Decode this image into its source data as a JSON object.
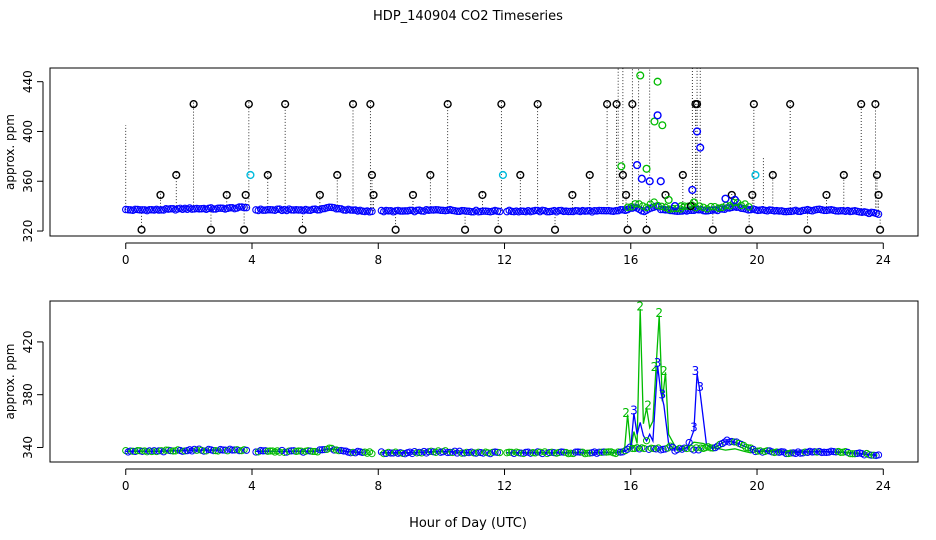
{
  "chart_data": [
    {
      "type": "scatter",
      "title": "HDP_140904  CO2 Timeseries",
      "xlabel": "",
      "ylabel": "approx. ppm",
      "xlim": [
        -2.4,
        25.1
      ],
      "ylim": [
        316,
        451
      ],
      "xticks": [
        0,
        4,
        8,
        12,
        16,
        20,
        24
      ],
      "yticks": [
        320,
        360,
        400,
        440
      ],
      "grid": false,
      "colors": {
        "series1": "#000000",
        "series2": "#00bb00",
        "series3": "#0000ff",
        "series4": "#00bbdd"
      },
      "baseline": {
        "x": [
          0,
          1,
          2,
          3,
          3.85,
          4,
          5,
          6,
          6.5,
          7,
          7.5,
          7.85,
          8,
          9,
          10,
          11,
          11.9,
          12,
          13,
          14,
          15,
          15.5,
          15.8,
          16,
          16.2,
          16.4,
          16.6,
          16.8,
          17,
          17.3,
          17.6,
          18,
          18.2,
          18.5,
          19,
          19.3,
          19.6,
          19.9,
          20,
          21,
          22,
          23,
          23.8
        ],
        "y": [
          337,
          337,
          338,
          338,
          339,
          337,
          337,
          337,
          339,
          337,
          336,
          336,
          336,
          336,
          337,
          336,
          336,
          336,
          336,
          336,
          336,
          336,
          337,
          338,
          339,
          336,
          338,
          340,
          337,
          336,
          336,
          337,
          337,
          336,
          338,
          340,
          338,
          337,
          337,
          336,
          337,
          336,
          334
        ]
      },
      "spike_points": {
        "x": [
          0.5,
          1.1,
          1.6,
          2.15,
          2.7,
          3.2,
          3.75,
          3.8,
          3.9,
          4.5,
          5.05,
          5.6,
          6.15,
          6.7,
          7.2,
          7.75,
          7.8,
          7.85,
          8.55,
          9.1,
          9.65,
          10.2,
          10.75,
          11.3,
          11.8,
          11.9,
          12.5,
          13.05,
          13.6,
          14.15,
          14.7,
          15.25,
          15.55,
          15.75,
          15.85,
          15.9,
          16.05,
          16.5,
          17.1,
          17.65,
          17.9,
          18.05,
          18.1,
          18.6,
          19.2,
          19.75,
          19.85,
          19.9,
          20.5,
          21.05,
          21.6,
          22.2,
          22.75,
          23.3,
          23.75,
          23.8,
          23.85,
          23.9
        ],
        "y": [
          321,
          349,
          365,
          422,
          321,
          349,
          321,
          349,
          422,
          365,
          422,
          321,
          349,
          365,
          422,
          422,
          365,
          349,
          321,
          349,
          365,
          422,
          321,
          349,
          321,
          422,
          365,
          422,
          321,
          349,
          365,
          422,
          422,
          365,
          349,
          321,
          422,
          321,
          349,
          365,
          340,
          422,
          422,
          321,
          349,
          321,
          349,
          422,
          365,
          422,
          321,
          349,
          365,
          422,
          422,
          365,
          349,
          321
        ]
      },
      "green_points": {
        "x": [
          15.7,
          16.3,
          16.5,
          16.75,
          16.85,
          17.0,
          17.2,
          17.6,
          18.0
        ],
        "y": [
          372,
          445,
          370,
          408,
          440,
          405,
          345,
          340,
          343
        ]
      },
      "blue_points": {
        "x": [
          16.2,
          16.35,
          16.6,
          16.85,
          16.95,
          17.4,
          17.95,
          18.1,
          18.2,
          19.0,
          19.3
        ],
        "y": [
          373,
          362,
          360,
          413,
          360,
          340,
          353,
          400,
          387,
          346,
          345
        ]
      },
      "cyan_points": {
        "x": [
          3.95,
          11.95,
          19.95
        ],
        "y": [
          365,
          365,
          365
        ]
      }
    },
    {
      "type": "line",
      "title": "",
      "xlabel": "Hour of Day (UTC)",
      "ylabel": "approx. ppm",
      "xlim": [
        -2.4,
        25.1
      ],
      "ylim": [
        329,
        451
      ],
      "xticks": [
        0,
        4,
        8,
        12,
        16,
        20,
        24
      ],
      "yticks": [
        340,
        380,
        420
      ],
      "grid": false,
      "series": [
        {
          "name": "2",
          "color": "#00bb00",
          "x": [
            0,
            1,
            2,
            3,
            3.9,
            4.1,
            5,
            6,
            6.5,
            7,
            7.5,
            7.85,
            8.05,
            9,
            10,
            11,
            11.9,
            12.05,
            13,
            14,
            15,
            15.5,
            15.65,
            15.8,
            15.9,
            16,
            16.1,
            16.2,
            16.3,
            16.4,
            16.5,
            16.6,
            16.7,
            16.8,
            16.9,
            17,
            17.1,
            17.2,
            17.4,
            17.6,
            17.8,
            18,
            18.3,
            18.6,
            19,
            19.3,
            19.6,
            19.8,
            20,
            20.5,
            21,
            22,
            23,
            23.8
          ],
          "y": [
            337,
            337,
            338,
            338,
            338,
            337,
            337,
            337,
            339,
            337,
            336,
            336,
            336,
            336,
            337,
            336,
            336,
            336,
            336,
            336,
            336,
            336,
            337,
            338,
            365,
            339,
            352,
            343,
            445,
            358,
            370,
            355,
            360,
            400,
            440,
            375,
            397,
            350,
            341,
            338,
            340,
            344,
            343,
            340,
            338,
            339,
            337,
            336,
            337,
            338,
            337,
            337,
            336,
            334
          ],
          "labels": [
            {
              "text": "2",
              "x": 15.85,
              "y": 366
            },
            {
              "text": "2",
              "x": 16.3,
              "y": 447
            },
            {
              "text": "2",
              "x": 16.55,
              "y": 372
            },
            {
              "text": "2",
              "x": 16.75,
              "y": 401
            },
            {
              "text": "2",
              "x": 16.9,
              "y": 442
            },
            {
              "text": "2",
              "x": 17.05,
              "y": 398
            }
          ]
        },
        {
          "name": "3",
          "color": "#0000ff",
          "x": [
            0,
            1,
            2,
            3,
            3.9,
            4.1,
            5,
            6,
            6.5,
            7,
            7.5,
            7.85,
            8.05,
            9,
            10,
            11,
            11.9,
            12.05,
            13,
            14,
            15,
            15.5,
            15.8,
            16,
            16.1,
            16.2,
            16.3,
            16.4,
            16.5,
            16.6,
            16.7,
            16.85,
            16.95,
            17.05,
            17.2,
            17.4,
            17.6,
            17.8,
            18,
            18.1,
            18.2,
            18.4,
            18.6,
            19,
            19.3,
            19.6,
            19.8,
            20,
            20.5,
            21,
            22,
            23,
            23.8
          ],
          "y": [
            337,
            337,
            338,
            338,
            338,
            337,
            337,
            337,
            339,
            337,
            336,
            336,
            336,
            336,
            337,
            336,
            336,
            336,
            336,
            336,
            336,
            336,
            337,
            340,
            366,
            350,
            359,
            349,
            345,
            350,
            345,
            402,
            382,
            372,
            343,
            338,
            339,
            340,
            353,
            396,
            381,
            342,
            339,
            345,
            344,
            341,
            339,
            337,
            337,
            336,
            337,
            336,
            334
          ],
          "labels": [
            {
              "text": "3",
              "x": 16.1,
              "y": 368
            },
            {
              "text": "3",
              "x": 16.85,
              "y": 404
            },
            {
              "text": "3",
              "x": 17.0,
              "y": 380
            },
            {
              "text": "3",
              "x": 18.05,
              "y": 398
            },
            {
              "text": "3",
              "x": 18.2,
              "y": 386
            },
            {
              "text": "3",
              "x": 18.0,
              "y": 355
            }
          ]
        }
      ]
    }
  ]
}
